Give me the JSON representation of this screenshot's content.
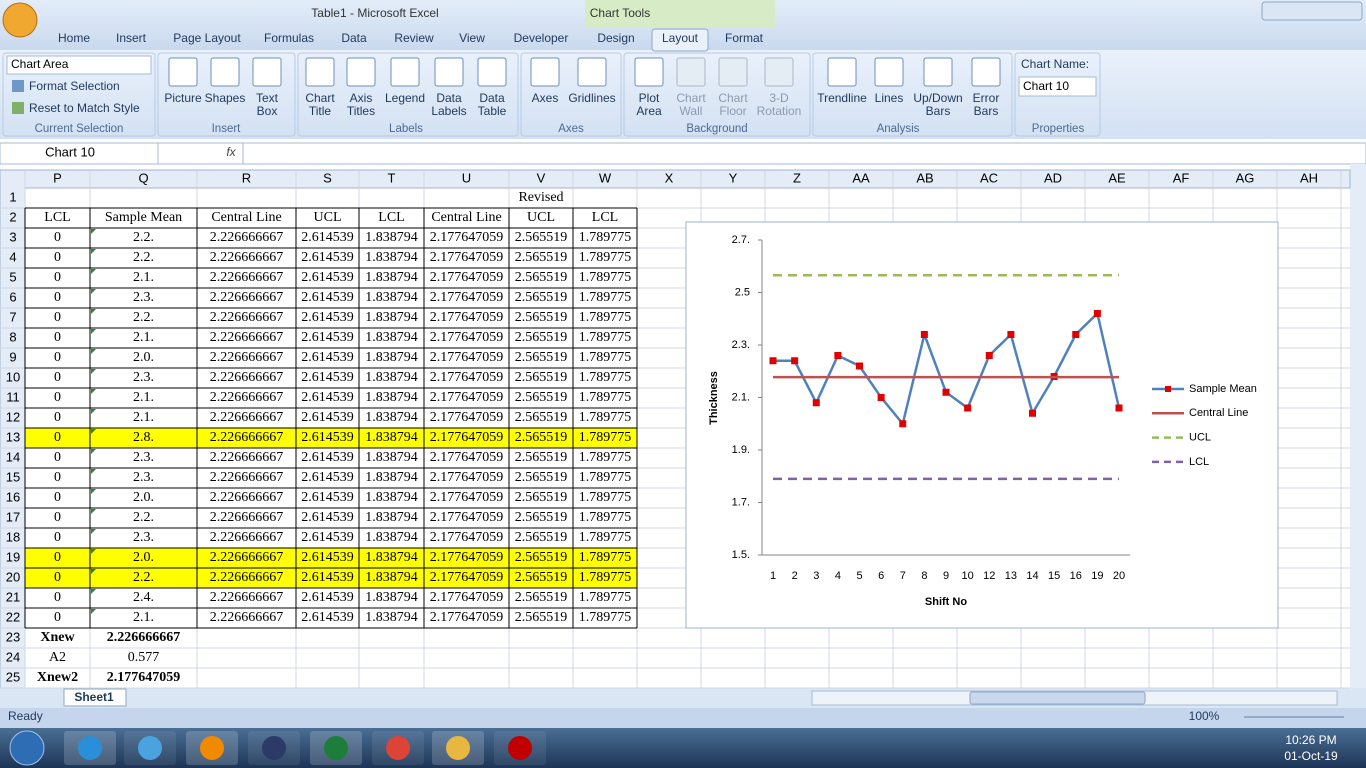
{
  "window": {
    "title": "Table1 - Microsoft Excel",
    "context_tab": "Chart Tools"
  },
  "tabs": [
    "Home",
    "Insert",
    "Page Layout",
    "Formulas",
    "Data",
    "Review",
    "View",
    "Developer",
    "Design",
    "Layout",
    "Format"
  ],
  "active_tab": 9,
  "ribbon": {
    "current_selection": {
      "dropdown": "Chart Area",
      "items": [
        "Format Selection",
        "Reset to Match Style"
      ],
      "label": "Current Selection"
    },
    "groups": [
      {
        "label": "Insert",
        "buttons": [
          [
            "Picture"
          ],
          [
            "Shapes"
          ],
          [
            "Text",
            "Box"
          ]
        ]
      },
      {
        "label": "Labels",
        "buttons": [
          [
            "Chart",
            "Title"
          ],
          [
            "Axis",
            "Titles"
          ],
          [
            "Legend"
          ],
          [
            "Data",
            "Labels"
          ],
          [
            "Data",
            "Table"
          ]
        ]
      },
      {
        "label": "Axes",
        "buttons": [
          [
            "Axes"
          ],
          [
            "Gridlines"
          ]
        ]
      },
      {
        "label": "Background",
        "buttons": [
          [
            "Plot",
            "Area"
          ],
          [
            "Chart",
            "Wall"
          ],
          [
            "Chart",
            "Floor"
          ],
          [
            "3-D",
            "Rotation"
          ]
        ]
      },
      {
        "label": "Analysis",
        "buttons": [
          [
            "Trendline"
          ],
          [
            "Lines"
          ],
          [
            "Up/Down",
            "Bars"
          ],
          [
            "Error",
            "Bars"
          ]
        ]
      }
    ],
    "properties": {
      "label": "Properties",
      "name_label": "Chart Name:",
      "name": "Chart 10"
    }
  },
  "formula_bar": {
    "name_box": "Chart 10",
    "fx": "fx"
  },
  "sheet": {
    "columns": [
      "P",
      "Q",
      "R",
      "S",
      "T",
      "U",
      "V",
      "W",
      "X",
      "Y",
      "Z",
      "AA",
      "AB",
      "AC",
      "AD",
      "AE",
      "AF",
      "AG",
      "AH"
    ],
    "row_numbers": [
      1,
      2,
      3,
      4,
      5,
      6,
      7,
      8,
      9,
      10,
      11,
      12,
      13,
      14,
      15,
      16,
      17,
      18,
      19,
      20,
      21,
      22,
      23,
      24,
      25
    ],
    "revised": "Revised",
    "headers": [
      "LCL",
      "Sample Mean",
      "Central Line",
      "UCL",
      "LCL",
      "Central Line",
      "UCL",
      "LCL"
    ],
    "rows": [
      [
        "0",
        "2.2.",
        "2.226666667",
        "2.614539",
        "1.838794",
        "2.177647059",
        "2.565519",
        "1.789775"
      ],
      [
        "0",
        "2.2.",
        "2.226666667",
        "2.614539",
        "1.838794",
        "2.177647059",
        "2.565519",
        "1.789775"
      ],
      [
        "0",
        "2.1.",
        "2.226666667",
        "2.614539",
        "1.838794",
        "2.177647059",
        "2.565519",
        "1.789775"
      ],
      [
        "0",
        "2.3.",
        "2.226666667",
        "2.614539",
        "1.838794",
        "2.177647059",
        "2.565519",
        "1.789775"
      ],
      [
        "0",
        "2.2.",
        "2.226666667",
        "2.614539",
        "1.838794",
        "2.177647059",
        "2.565519",
        "1.789775"
      ],
      [
        "0",
        "2.1.",
        "2.226666667",
        "2.614539",
        "1.838794",
        "2.177647059",
        "2.565519",
        "1.789775"
      ],
      [
        "0",
        "2.0.",
        "2.226666667",
        "2.614539",
        "1.838794",
        "2.177647059",
        "2.565519",
        "1.789775"
      ],
      [
        "0",
        "2.3.",
        "2.226666667",
        "2.614539",
        "1.838794",
        "2.177647059",
        "2.565519",
        "1.789775"
      ],
      [
        "0",
        "2.1.",
        "2.226666667",
        "2.614539",
        "1.838794",
        "2.177647059",
        "2.565519",
        "1.789775"
      ],
      [
        "0",
        "2.1.",
        "2.226666667",
        "2.614539",
        "1.838794",
        "2.177647059",
        "2.565519",
        "1.789775"
      ],
      [
        "0",
        "2.8.",
        "2.226666667",
        "2.614539",
        "1.838794",
        "2.177647059",
        "2.565519",
        "1.789775"
      ],
      [
        "0",
        "2.3.",
        "2.226666667",
        "2.614539",
        "1.838794",
        "2.177647059",
        "2.565519",
        "1.789775"
      ],
      [
        "0",
        "2.3.",
        "2.226666667",
        "2.614539",
        "1.838794",
        "2.177647059",
        "2.565519",
        "1.789775"
      ],
      [
        "0",
        "2.0.",
        "2.226666667",
        "2.614539",
        "1.838794",
        "2.177647059",
        "2.565519",
        "1.789775"
      ],
      [
        "0",
        "2.2.",
        "2.226666667",
        "2.614539",
        "1.838794",
        "2.177647059",
        "2.565519",
        "1.789775"
      ],
      [
        "0",
        "2.3.",
        "2.226666667",
        "2.614539",
        "1.838794",
        "2.177647059",
        "2.565519",
        "1.789775"
      ],
      [
        "0",
        "2.0.",
        "2.226666667",
        "2.614539",
        "1.838794",
        "2.177647059",
        "2.565519",
        "1.789775"
      ],
      [
        "0",
        "2.2.",
        "2.226666667",
        "2.614539",
        "1.838794",
        "2.177647059",
        "2.565519",
        "1.789775"
      ],
      [
        "0",
        "2.4.",
        "2.226666667",
        "2.614539",
        "1.838794",
        "2.177647059",
        "2.565519",
        "1.789775"
      ],
      [
        "0",
        "2.1.",
        "2.226666667",
        "2.614539",
        "1.838794",
        "2.177647059",
        "2.565519",
        "1.789775"
      ]
    ],
    "highlight_rows": [
      13,
      19,
      20
    ],
    "highlight_color": "#ffff00",
    "summary": [
      [
        "Xnew",
        "2.226666667"
      ],
      [
        "A2",
        "0.577"
      ],
      [
        "Xnew2",
        "2.177647059"
      ]
    ],
    "summary_bold": [
      true,
      false,
      true
    ],
    "sheet_tab": "Sheet1"
  },
  "chart": {
    "type": "line",
    "y_label": "Thickness",
    "x_label": "Shift No",
    "categories": [
      1,
      2,
      3,
      4,
      5,
      6,
      7,
      8,
      9,
      10,
      12,
      13,
      14,
      15,
      16,
      19,
      20
    ],
    "ylim": [
      1.5,
      2.7
    ],
    "yticks": [
      {
        "value": 1.5,
        "label": "1.5."
      },
      {
        "value": 1.7,
        "label": "1.7."
      },
      {
        "value": 1.9,
        "label": "1.9."
      },
      {
        "value": 2.1,
        "label": "2.1."
      },
      {
        "value": 2.3,
        "label": "2.3."
      },
      {
        "value": 2.5,
        "label": "2.5"
      },
      {
        "value": 2.7,
        "label": "2.7."
      }
    ],
    "series": [
      {
        "name": "Sample Mean",
        "color": "#4f81bd",
        "marker_color": "#e00000",
        "values": [
          2.24,
          2.24,
          2.08,
          2.26,
          2.22,
          2.1,
          2.0,
          2.34,
          2.12,
          2.06,
          2.26,
          2.34,
          2.04,
          2.18,
          2.34,
          2.42,
          2.06
        ]
      },
      {
        "name": "Central Line",
        "color": "#c0504d",
        "values": [
          2.177647059,
          2.177647059,
          2.177647059,
          2.177647059,
          2.177647059,
          2.177647059,
          2.177647059,
          2.177647059,
          2.177647059,
          2.177647059,
          2.177647059,
          2.177647059,
          2.177647059,
          2.177647059,
          2.177647059,
          2.177647059,
          2.177647059
        ]
      },
      {
        "name": "UCL",
        "color": "#9bbb59",
        "dash": true,
        "values": [
          2.565519,
          2.565519,
          2.565519,
          2.565519,
          2.565519,
          2.565519,
          2.565519,
          2.565519,
          2.565519,
          2.565519,
          2.565519,
          2.565519,
          2.565519,
          2.565519,
          2.565519,
          2.565519,
          2.565519
        ]
      },
      {
        "name": "LCL",
        "color": "#8064a2",
        "dash": true,
        "values": [
          1.789775,
          1.789775,
          1.789775,
          1.789775,
          1.789775,
          1.789775,
          1.789775,
          1.789775,
          1.789775,
          1.789775,
          1.789775,
          1.789775,
          1.789775,
          1.789775,
          1.789775,
          1.789775,
          1.789775
        ]
      }
    ]
  },
  "status": {
    "ready": "Ready",
    "zoom": "100%"
  },
  "taskbar": {
    "time": "10:26 PM",
    "date": "01-Oct-19"
  }
}
